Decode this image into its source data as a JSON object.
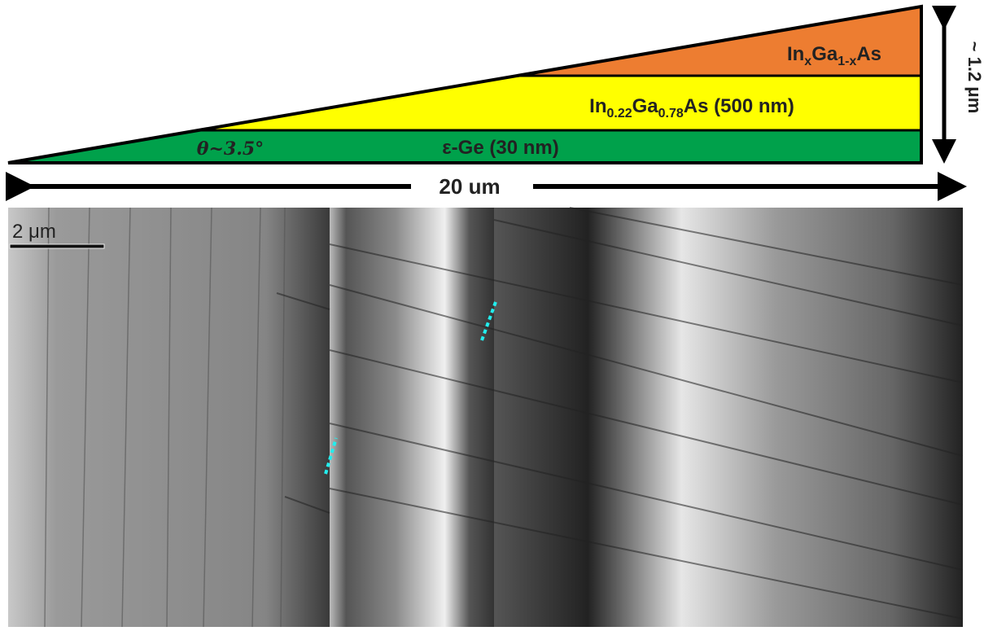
{
  "diagram": {
    "layers": [
      {
        "label": [
          "In",
          "x",
          "Ga",
          "1-x",
          "As"
        ]
      },
      {
        "label": [
          "In",
          "0.22",
          "Ga",
          "0.78",
          "As (500 nm)"
        ]
      },
      {
        "label": [
          "ε-Ge (30 nm)"
        ]
      }
    ],
    "angle_label": "θ~3.5°",
    "height_label": "~ 1.2 μm",
    "width_label": "20 um",
    "scale_bar_label": "2  μm"
  }
}
